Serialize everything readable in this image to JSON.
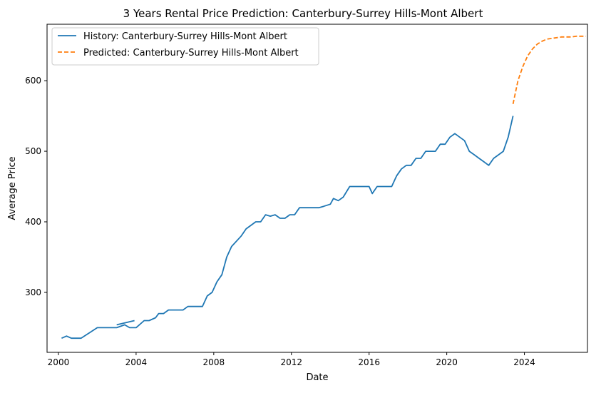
{
  "chart_data": {
    "type": "line",
    "title": "3 Years Rental Price Prediction: Canterbury-Surrey Hills-Mont Albert",
    "xlabel": "Date",
    "ylabel": "Average Price",
    "xlim": [
      "1999-06-01",
      "2027-04-01"
    ],
    "ylim": [
      215,
      680
    ],
    "x_ticks": [
      {
        "value": "2000-01-01",
        "label": "2000"
      },
      {
        "value": "2004-01-01",
        "label": "2004"
      },
      {
        "value": "2008-01-01",
        "label": "2008"
      },
      {
        "value": "2012-01-01",
        "label": "2012"
      },
      {
        "value": "2016-01-01",
        "label": "2016"
      },
      {
        "value": "2020-01-01",
        "label": "2020"
      },
      {
        "value": "2024-01-01",
        "label": "2024"
      }
    ],
    "y_ticks": [
      300,
      400,
      500,
      600
    ],
    "grid": false,
    "legend_position": "upper left",
    "series": [
      {
        "name": "History: Canterbury-Surrey Hills-Mont Albert",
        "color": "#1f77b4",
        "style": "solid",
        "points": [
          [
            "2000-03-01",
            235
          ],
          [
            "2000-06-01",
            238
          ],
          [
            "2000-09-01",
            235
          ],
          [
            "2000-12-01",
            235
          ],
          [
            "2001-03-01",
            235
          ],
          [
            "2002-01-01",
            250
          ],
          [
            "2002-06-01",
            250
          ],
          [
            "2003-01-01",
            250
          ],
          [
            "2003-06-01",
            254
          ],
          [
            "2003-09-01",
            250
          ],
          [
            "2004-01-01",
            250
          ],
          [
            "2004-06-01",
            260
          ],
          [
            "2004-09-01",
            260
          ],
          [
            "2005-01-01",
            264
          ],
          [
            "2005-03-01",
            270
          ],
          [
            "2005-06-01",
            270
          ],
          [
            "2005-09-01",
            275
          ],
          [
            "2006-01-01",
            275
          ],
          [
            "2006-06-01",
            275
          ],
          [
            "2006-09-01",
            280
          ],
          [
            "2007-01-01",
            280
          ],
          [
            "2007-06-01",
            280
          ],
          [
            "2007-09-01",
            295
          ],
          [
            "2007-12-01",
            300
          ],
          [
            "2008-03-01",
            315
          ],
          [
            "2008-06-01",
            325
          ],
          [
            "2008-09-01",
            350
          ],
          [
            "2008-12-01",
            365
          ],
          [
            "2009-06-01",
            380
          ],
          [
            "2009-09-01",
            390
          ],
          [
            "2010-03-01",
            400
          ],
          [
            "2010-06-01",
            400
          ],
          [
            "2010-09-01",
            410
          ],
          [
            "2010-12-01",
            408
          ],
          [
            "2011-03-01",
            410
          ],
          [
            "2011-06-01",
            405
          ],
          [
            "2011-09-01",
            405
          ],
          [
            "2011-12-01",
            410
          ],
          [
            "2012-03-01",
            410
          ],
          [
            "2012-06-01",
            420
          ],
          [
            "2012-09-01",
            420
          ],
          [
            "2013-06-01",
            420
          ],
          [
            "2013-09-01",
            422
          ],
          [
            "2014-01-01",
            425
          ],
          [
            "2014-03-01",
            433
          ],
          [
            "2014-06-01",
            430
          ],
          [
            "2014-09-01",
            435
          ],
          [
            "2015-01-01",
            450
          ],
          [
            "2015-06-01",
            450
          ],
          [
            "2015-09-01",
            450
          ],
          [
            "2016-01-01",
            450
          ],
          [
            "2016-03-01",
            440
          ],
          [
            "2016-06-01",
            450
          ],
          [
            "2016-09-01",
            450
          ],
          [
            "2017-03-01",
            450
          ],
          [
            "2017-06-01",
            465
          ],
          [
            "2017-09-01",
            475
          ],
          [
            "2017-12-01",
            480
          ],
          [
            "2018-03-01",
            480
          ],
          [
            "2018-06-01",
            490
          ],
          [
            "2018-09-01",
            490
          ],
          [
            "2018-12-01",
            500
          ],
          [
            "2019-03-01",
            500
          ],
          [
            "2019-06-01",
            500
          ],
          [
            "2019-09-01",
            510
          ],
          [
            "2019-12-01",
            510
          ],
          [
            "2020-03-01",
            520
          ],
          [
            "2020-06-01",
            525
          ],
          [
            "2020-09-01",
            520
          ],
          [
            "2020-12-01",
            515
          ],
          [
            "2021-03-01",
            500
          ],
          [
            "2021-06-01",
            495
          ],
          [
            "2021-09-01",
            490
          ],
          [
            "2021-12-01",
            485
          ],
          [
            "2022-03-01",
            480
          ],
          [
            "2022-06-01",
            490
          ],
          [
            "2022-09-01",
            495
          ],
          [
            "2022-12-01",
            500
          ],
          [
            "2023-03-01",
            520
          ],
          [
            "2023-06-01",
            550
          ]
        ],
        "extra_segment": [
          [
            "2003-01-01",
            254
          ],
          [
            "2003-12-01",
            260
          ]
        ]
      },
      {
        "name": "Predicted: Canterbury-Surrey Hills-Mont Albert",
        "color": "#ff7f0e",
        "style": "dashed",
        "points": [
          [
            "2023-06-01",
            567
          ],
          [
            "2023-09-01",
            600
          ],
          [
            "2023-12-01",
            620
          ],
          [
            "2024-03-01",
            635
          ],
          [
            "2024-06-01",
            645
          ],
          [
            "2024-09-01",
            652
          ],
          [
            "2024-12-01",
            656
          ],
          [
            "2025-03-01",
            659
          ],
          [
            "2025-06-01",
            660
          ],
          [
            "2025-09-01",
            661
          ],
          [
            "2025-12-01",
            662
          ],
          [
            "2026-03-01",
            662
          ],
          [
            "2026-06-01",
            662
          ],
          [
            "2026-09-01",
            663
          ],
          [
            "2026-12-01",
            663
          ],
          [
            "2027-03-01",
            663
          ]
        ]
      }
    ]
  }
}
